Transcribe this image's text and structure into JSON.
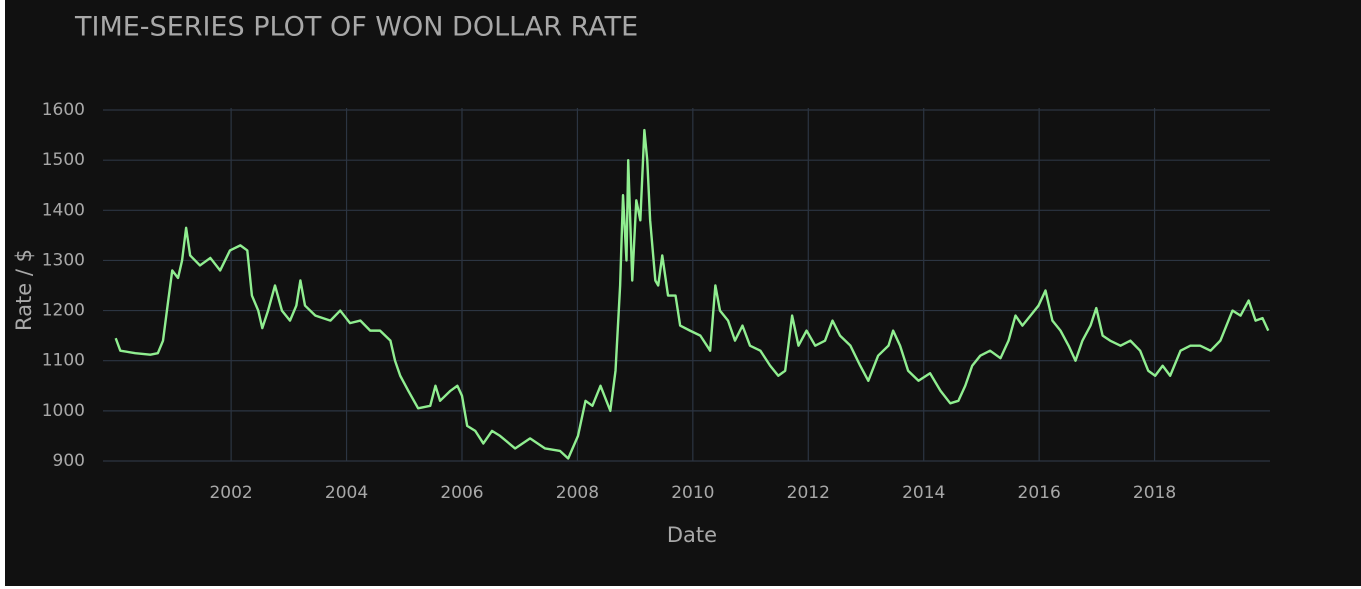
{
  "chart_data": {
    "type": "line",
    "title": "TIME-SERIES PLOT OF WON DOLLAR RATE",
    "x_label": "Date",
    "y_label": "Rate / $",
    "color": "#90ee90",
    "grid": true,
    "xlim": [
      1999.78,
      2020.0
    ],
    "xticks": [
      2002,
      2004,
      2006,
      2008,
      2010,
      2012,
      2014,
      2016,
      2018
    ],
    "ylim": [
      885,
      1620
    ],
    "yticks": [
      900,
      1000,
      1100,
      1200,
      1300,
      1400,
      1500,
      1600
    ],
    "x": [
      2000.0,
      2000.08,
      2000.34,
      2000.6,
      2000.73,
      2000.82,
      2000.91,
      2000.98,
      2001.08,
      2001.15,
      2001.22,
      2001.29,
      2001.46,
      2001.64,
      2001.81,
      2001.98,
      2002.16,
      2002.28,
      2002.36,
      2002.47,
      2002.54,
      2002.64,
      2002.76,
      2002.88,
      2003.02,
      2003.13,
      2003.2,
      2003.28,
      2003.46,
      2003.72,
      2003.89,
      2004.06,
      2004.24,
      2004.41,
      2004.58,
      2004.76,
      2004.84,
      2004.93,
      2005.07,
      2005.24,
      2005.45,
      2005.54,
      2005.62,
      2005.8,
      2005.92,
      2006.0,
      2006.09,
      2006.23,
      2006.37,
      2006.52,
      2006.66,
      2006.92,
      2007.18,
      2007.44,
      2007.7,
      2007.84,
      2008.01,
      2008.14,
      2008.26,
      2008.4,
      2008.57,
      2008.66,
      2008.74,
      2008.79,
      2008.85,
      2008.88,
      2008.95,
      2009.02,
      2009.09,
      2009.16,
      2009.21,
      2009.26,
      2009.35,
      2009.4,
      2009.47,
      2009.57,
      2009.7,
      2009.78,
      2009.95,
      2010.13,
      2010.3,
      2010.39,
      2010.47,
      2010.61,
      2010.73,
      2010.86,
      2010.99,
      2011.17,
      2011.34,
      2011.48,
      2011.6,
      2011.72,
      2011.83,
      2011.97,
      2012.12,
      2012.29,
      2012.42,
      2012.55,
      2012.73,
      2012.9,
      2013.04,
      2013.21,
      2013.39,
      2013.47,
      2013.59,
      2013.73,
      2013.91,
      2014.11,
      2014.29,
      2014.46,
      2014.6,
      2014.72,
      2014.84,
      2014.98,
      2015.15,
      2015.33,
      2015.47,
      2015.59,
      2015.71,
      2015.85,
      2015.99,
      2016.11,
      2016.23,
      2016.37,
      2016.51,
      2016.63,
      2016.75,
      2016.89,
      2016.99,
      2017.1,
      2017.23,
      2017.41,
      2017.58,
      2017.75,
      2017.89,
      2018.01,
      2018.14,
      2018.27,
      2018.45,
      2018.62,
      2018.79,
      2018.97,
      2019.14,
      2019.35,
      2019.49,
      2019.63,
      2019.75,
      2019.87,
      2019.97
    ],
    "values": [
      1145,
      1120,
      1115,
      1112,
      1115,
      1140,
      1220,
      1280,
      1265,
      1300,
      1365,
      1310,
      1290,
      1305,
      1280,
      1320,
      1330,
      1320,
      1230,
      1200,
      1165,
      1200,
      1250,
      1200,
      1180,
      1210,
      1260,
      1210,
      1190,
      1180,
      1200,
      1175,
      1180,
      1160,
      1160,
      1140,
      1100,
      1070,
      1040,
      1005,
      1010,
      1050,
      1020,
      1040,
      1050,
      1030,
      970,
      960,
      935,
      960,
      950,
      925,
      945,
      925,
      920,
      905,
      950,
      1020,
      1010,
      1050,
      1000,
      1080,
      1250,
      1430,
      1300,
      1500,
      1260,
      1420,
      1380,
      1560,
      1500,
      1380,
      1260,
      1250,
      1310,
      1230,
      1230,
      1170,
      1160,
      1150,
      1120,
      1250,
      1200,
      1180,
      1140,
      1170,
      1130,
      1120,
      1090,
      1070,
      1080,
      1190,
      1130,
      1160,
      1130,
      1140,
      1180,
      1150,
      1130,
      1090,
      1060,
      1110,
      1130,
      1160,
      1130,
      1080,
      1060,
      1075,
      1040,
      1015,
      1020,
      1050,
      1090,
      1110,
      1120,
      1105,
      1140,
      1190,
      1170,
      1190,
      1210,
      1240,
      1180,
      1160,
      1130,
      1100,
      1140,
      1170,
      1205,
      1150,
      1140,
      1130,
      1140,
      1120,
      1080,
      1070,
      1090,
      1070,
      1120,
      1130,
      1130,
      1120,
      1140,
      1200,
      1190,
      1220,
      1180,
      1185,
      1160
    ]
  }
}
